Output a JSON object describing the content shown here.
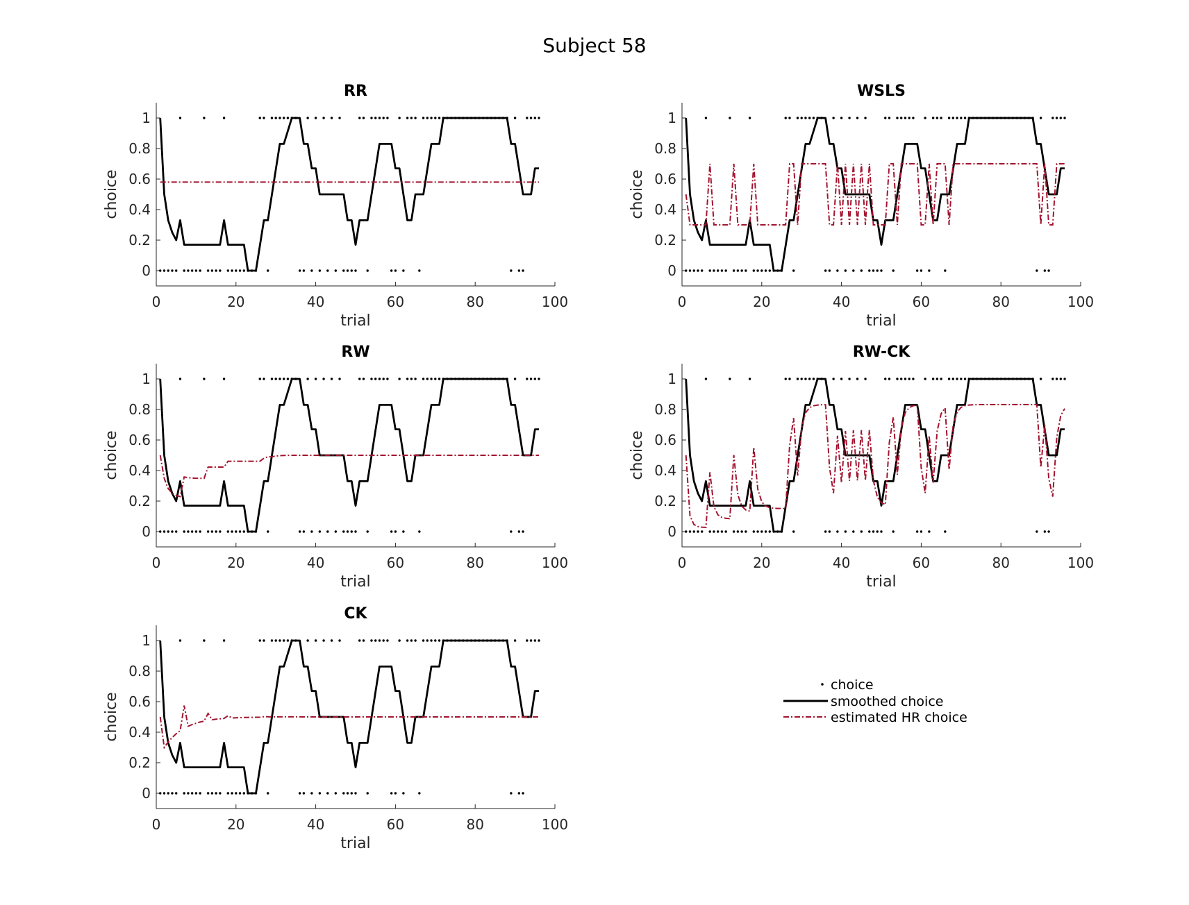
{
  "figure": {
    "title": "Subject 58"
  },
  "legend": {
    "placement": "lower-right",
    "entries": [
      {
        "label": "choice",
        "style": "dots",
        "color": "#000000"
      },
      {
        "label": "smoothed choice",
        "style": "solid",
        "color": "#000000"
      },
      {
        "label": "estimated HR choice",
        "style": "dash-dot",
        "color": "#a2142f"
      }
    ]
  },
  "chart_data": [
    {
      "type": "line",
      "title": "RR",
      "xlabel": "trial",
      "ylabel": "choice",
      "xlim": [
        0,
        100
      ],
      "ylim": [
        -0.1,
        1.1
      ],
      "xticks": [
        0,
        20,
        40,
        60,
        80,
        100
      ],
      "yticks": [
        0,
        0.2,
        0.4,
        0.6,
        0.8,
        1
      ],
      "xtick_labels": [
        "0",
        "20",
        "40",
        "60",
        "80",
        "100"
      ],
      "ytick_labels": [
        "0",
        "0.2",
        "0.4",
        "0.6",
        "0.8",
        "1"
      ],
      "model": "constant",
      "model_points": [
        [
          1,
          0.58
        ],
        [
          96,
          0.58
        ]
      ]
    },
    {
      "type": "line",
      "title": "WSLS",
      "xlabel": "trial",
      "ylabel": "choice",
      "xlim": [
        0,
        100
      ],
      "ylim": [
        -0.1,
        1.1
      ],
      "xticks": [
        0,
        20,
        40,
        60,
        80,
        100
      ],
      "yticks": [
        0,
        0.2,
        0.4,
        0.6,
        0.8,
        1
      ],
      "xtick_labels": [
        "0",
        "20",
        "40",
        "60",
        "80",
        "100"
      ],
      "ytick_labels": [
        "0",
        "0.2",
        "0.4",
        "0.6",
        "0.8",
        "1"
      ],
      "model": "wsls",
      "model_params": {
        "hi": 0.7,
        "lo": 0.3,
        "start": 0.5
      }
    },
    {
      "type": "line",
      "title": "RW",
      "xlabel": "trial",
      "ylabel": "choice",
      "xlim": [
        0,
        100
      ],
      "ylim": [
        -0.1,
        1.1
      ],
      "xticks": [
        0,
        20,
        40,
        60,
        80,
        100
      ],
      "yticks": [
        0,
        0.2,
        0.4,
        0.6,
        0.8,
        1
      ],
      "xtick_labels": [
        "0",
        "20",
        "40",
        "60",
        "80",
        "100"
      ],
      "ytick_labels": [
        "0",
        "0.2",
        "0.4",
        "0.6",
        "0.8",
        "1"
      ],
      "model": "rw",
      "model_params": {
        "alpha": 0.5,
        "beta": 2.5,
        "kappa": 0,
        "tau": 0.5,
        "start": 0.5
      }
    },
    {
      "type": "line",
      "title": "RW-CK",
      "xlabel": "trial",
      "ylabel": "choice",
      "xlim": [
        0,
        100
      ],
      "ylim": [
        -0.1,
        1.1
      ],
      "xticks": [
        0,
        20,
        40,
        60,
        80,
        100
      ],
      "yticks": [
        0,
        0.2,
        0.4,
        0.6,
        0.8,
        1
      ],
      "xtick_labels": [
        "0",
        "20",
        "40",
        "60",
        "80",
        "100"
      ],
      "ytick_labels": [
        "0",
        "0.2",
        "0.4",
        "0.6",
        "0.8",
        "1"
      ],
      "model": "rw",
      "model_params": {
        "alpha": 0.6,
        "beta": 4.0,
        "kappa": 1.6,
        "tau": 0.6,
        "start": 0.5
      }
    },
    {
      "type": "line",
      "title": "CK",
      "xlabel": "trial",
      "ylabel": "choice",
      "xlim": [
        0,
        100
      ],
      "ylim": [
        -0.1,
        1.1
      ],
      "xticks": [
        0,
        20,
        40,
        60,
        80,
        100
      ],
      "yticks": [
        0,
        0.2,
        0.4,
        0.6,
        0.8,
        1
      ],
      "xtick_labels": [
        "0",
        "20",
        "40",
        "60",
        "80",
        "100"
      ],
      "ytick_labels": [
        "0",
        "0.2",
        "0.4",
        "0.6",
        "0.8",
        "1"
      ],
      "model": "ck",
      "model_params": {
        "k0": 1.0,
        "decay": 0.82,
        "start": 0.5,
        "end": 0.5
      }
    }
  ],
  "choices_one_trials": [
    6,
    12,
    17,
    26,
    27,
    29,
    30,
    31,
    32,
    33,
    34,
    35,
    38,
    40,
    42,
    44,
    46,
    51,
    52,
    54,
    55,
    56,
    57,
    58,
    61,
    63,
    64,
    65,
    67,
    68,
    69,
    70,
    71,
    72,
    73,
    74,
    75,
    76,
    77,
    78,
    79,
    80,
    81,
    82,
    83,
    84,
    85,
    86,
    87,
    88,
    90,
    93,
    94,
    95,
    96
  ],
  "n_trials": 96,
  "smoothed_choice": [
    [
      1,
      1
    ],
    [
      2,
      0.5
    ],
    [
      3,
      0.33
    ],
    [
      4,
      0.25
    ],
    [
      5,
      0.2
    ],
    [
      6,
      0.33
    ],
    [
      7,
      0.17
    ],
    [
      16,
      0.17
    ],
    [
      17,
      0.33
    ],
    [
      18,
      0.17
    ],
    [
      22,
      0.17
    ],
    [
      23,
      0
    ],
    [
      25,
      0
    ],
    [
      27,
      0.33
    ],
    [
      28,
      0.33
    ],
    [
      31,
      0.83
    ],
    [
      32,
      0.83
    ],
    [
      34,
      1
    ],
    [
      36,
      1
    ],
    [
      37,
      0.83
    ],
    [
      38,
      0.83
    ],
    [
      39,
      0.67
    ],
    [
      40,
      0.67
    ],
    [
      41,
      0.5
    ],
    [
      47,
      0.5
    ],
    [
      48,
      0.33
    ],
    [
      49,
      0.33
    ],
    [
      50,
      0.17
    ],
    [
      51,
      0.33
    ],
    [
      53,
      0.33
    ],
    [
      56,
      0.83
    ],
    [
      59,
      0.83
    ],
    [
      60,
      0.67
    ],
    [
      61,
      0.67
    ],
    [
      63,
      0.33
    ],
    [
      64,
      0.33
    ],
    [
      65,
      0.5
    ],
    [
      67,
      0.5
    ],
    [
      69,
      0.83
    ],
    [
      71,
      0.83
    ],
    [
      72,
      1
    ],
    [
      88,
      1
    ],
    [
      89,
      0.83
    ],
    [
      90,
      0.83
    ],
    [
      92,
      0.5
    ],
    [
      94,
      0.5
    ],
    [
      95,
      0.67
    ],
    [
      96,
      0.67
    ]
  ],
  "colors": {
    "model": "#a2142f",
    "smoothed": "#000000",
    "axis": "#262626"
  }
}
